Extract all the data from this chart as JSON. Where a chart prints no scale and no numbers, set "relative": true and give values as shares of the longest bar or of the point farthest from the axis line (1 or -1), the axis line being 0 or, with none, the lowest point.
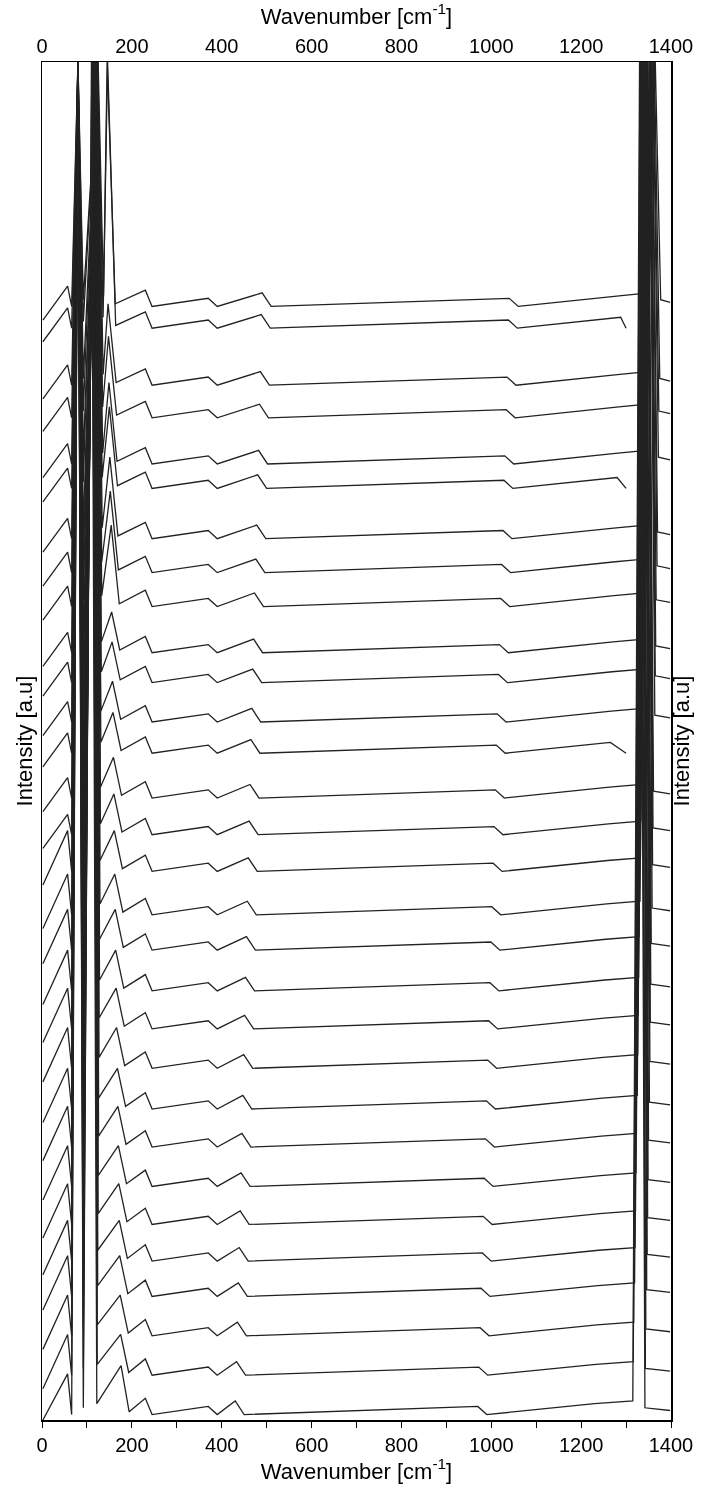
{
  "chart_data": {
    "type": "line",
    "relative": true,
    "xlabel": "Wavenumber [cm$^{-1}$]",
    "x2label": "Wavenumber [cm$^{-1}$]",
    "ylabel": "Intensity [a.u]",
    "y2label": "Intensity [a.u]",
    "xlim": [
      0,
      1400
    ],
    "x2lim": [
      0,
      1400
    ],
    "xticks": [
      0,
      {
        "value": 100,
        "label": null
      },
      200,
      {
        "value": 300,
        "label": null
      },
      400,
      {
        "value": 500,
        "label": null
      },
      600,
      {
        "value": 700,
        "label": null
      },
      800,
      {
        "value": 900,
        "label": null
      },
      1000,
      {
        "value": 1100,
        "label": null
      },
      1200,
      {
        "value": 1300,
        "label": null
      },
      1400
    ],
    "x2ticks": [
      0,
      200,
      400,
      600,
      800,
      1000,
      1200,
      1400
    ],
    "tick_labels": "x",
    "grid": false,
    "line_style": "solid",
    "series": [
      {
        "color": "#222222",
        "x": [
          2,
          57,
          66,
          80,
          92,
          125,
          137,
          145,
          163,
          230,
          245,
          370,
          390,
          490,
          510,
          1040,
          1060,
          1290,
          1350,
          1365,
          1377,
          1398
        ],
        "values": [
          0.81,
          0.835,
          0.82,
          1,
          0.825,
          1,
          0.828,
          1,
          0.822,
          0.832,
          0.82,
          0.826,
          0.82,
          0.83,
          0.82,
          0.826,
          0.82,
          0.828,
          0.83,
          1,
          0.825,
          0.823
        ]
      },
      {
        "color": "#222222",
        "x": [
          2,
          57,
          66,
          80,
          92,
          124,
          136,
          146,
          164,
          230,
          245,
          370,
          390,
          488,
          508,
          1038,
          1058,
          1288,
          1300
        ],
        "values": [
          0.794,
          0.819,
          0.804,
          1,
          0.809,
          1,
          0.812,
          1,
          0.806,
          0.816,
          0.804,
          0.81,
          0.804,
          0.814,
          0.804,
          0.81,
          0.804,
          0.812,
          0.804
        ]
      },
      {
        "color": "#222222",
        "x": [
          2,
          57,
          66,
          80,
          92,
          124,
          136,
          147,
          165,
          230,
          245,
          370,
          390,
          486,
          506,
          1035,
          1055,
          1286,
          1348,
          1363,
          1375,
          1398
        ],
        "values": [
          0.752,
          0.777,
          0.762,
          1,
          0.767,
          1,
          0.77,
          0.822,
          0.764,
          0.774,
          0.762,
          0.768,
          0.762,
          0.772,
          0.762,
          0.768,
          0.762,
          0.77,
          0.772,
          1,
          0.767,
          0.765
        ]
      },
      {
        "color": "#222222",
        "x": [
          2,
          57,
          66,
          80,
          92,
          123,
          135,
          148,
          166,
          230,
          245,
          370,
          390,
          484,
          504,
          1033,
          1053,
          1284,
          1346,
          1361,
          1373,
          1398
        ],
        "values": [
          0.728,
          0.753,
          0.738,
          1,
          0.743,
          1,
          0.746,
          0.798,
          0.74,
          0.75,
          0.738,
          0.744,
          0.738,
          0.748,
          0.738,
          0.744,
          0.738,
          0.746,
          0.748,
          1,
          0.743,
          0.741
        ]
      },
      {
        "color": "#222222",
        "x": [
          2,
          57,
          66,
          80,
          92,
          123,
          135,
          149,
          167,
          230,
          245,
          370,
          390,
          482,
          502,
          1030,
          1050,
          1282,
          1345,
          1360,
          1372,
          1398
        ],
        "values": [
          0.694,
          0.719,
          0.704,
          1,
          0.709,
          1,
          0.712,
          0.764,
          0.706,
          0.716,
          0.704,
          0.71,
          0.704,
          0.714,
          0.704,
          0.71,
          0.704,
          0.712,
          0.714,
          1,
          0.709,
          0.707
        ]
      },
      {
        "color": "#222222",
        "x": [
          2,
          57,
          66,
          80,
          92,
          122,
          134,
          150,
          168,
          230,
          245,
          370,
          390,
          480,
          500,
          1028,
          1048,
          1280,
          1300
        ],
        "values": [
          0.676,
          0.701,
          0.686,
          1,
          0.691,
          1,
          0.694,
          0.746,
          0.688,
          0.698,
          0.686,
          0.692,
          0.686,
          0.696,
          0.686,
          0.692,
          0.686,
          0.694,
          0.686
        ]
      },
      {
        "color": "#222222",
        "x": [
          2,
          57,
          66,
          80,
          92,
          122,
          134,
          151,
          169,
          230,
          245,
          370,
          390,
          478,
          498,
          1026,
          1046,
          1278,
          1343,
          1358,
          1370,
          1398
        ],
        "values": [
          0.639,
          0.664,
          0.649,
          1,
          0.654,
          1,
          0.657,
          0.709,
          0.651,
          0.661,
          0.649,
          0.655,
          0.649,
          0.659,
          0.649,
          0.655,
          0.649,
          0.657,
          0.659,
          1,
          0.654,
          0.652
        ]
      },
      {
        "color": "#222222",
        "x": [
          2,
          57,
          66,
          80,
          92,
          121,
          133,
          152,
          170,
          230,
          245,
          370,
          390,
          476,
          496,
          1023,
          1043,
          1276,
          1342,
          1357,
          1369,
          1398
        ],
        "values": [
          0.614,
          0.639,
          0.624,
          1,
          0.629,
          1,
          0.632,
          0.684,
          0.626,
          0.636,
          0.624,
          0.63,
          0.624,
          0.634,
          0.624,
          0.63,
          0.624,
          0.632,
          0.634,
          1,
          0.629,
          0.627
        ]
      },
      {
        "color": "#222222",
        "x": [
          2,
          57,
          66,
          80,
          92,
          121,
          133,
          154,
          172,
          230,
          245,
          370,
          390,
          473,
          493,
          1021,
          1041,
          1273,
          1340,
          1355,
          1367,
          1398
        ],
        "values": [
          0.589,
          0.614,
          0.599,
          1,
          0.604,
          1,
          0.607,
          0.659,
          0.601,
          0.611,
          0.599,
          0.605,
          0.599,
          0.609,
          0.599,
          0.605,
          0.599,
          0.607,
          0.609,
          1,
          0.604,
          0.602
        ]
      },
      {
        "color": "#222222",
        "x": [
          2,
          57,
          66,
          80,
          92,
          120,
          132,
          155,
          173,
          230,
          245,
          370,
          390,
          471,
          491,
          1018,
          1038,
          1271,
          1339,
          1354,
          1366,
          1398
        ],
        "values": [
          0.555,
          0.58,
          0.565,
          1,
          0.57,
          1,
          0.573,
          0.595,
          0.567,
          0.577,
          0.565,
          0.571,
          0.565,
          0.575,
          0.565,
          0.571,
          0.565,
          0.573,
          0.575,
          1,
          0.57,
          0.568
        ]
      },
      {
        "color": "#222222",
        "x": [
          2,
          57,
          66,
          80,
          92,
          120,
          132,
          156,
          174,
          230,
          245,
          370,
          390,
          469,
          489,
          1016,
          1036,
          1269,
          1338,
          1353,
          1365,
          1398
        ],
        "values": [
          0.533,
          0.558,
          0.543,
          1,
          0.548,
          1,
          0.551,
          0.573,
          0.545,
          0.555,
          0.543,
          0.549,
          0.543,
          0.553,
          0.543,
          0.549,
          0.543,
          0.551,
          0.553,
          1,
          0.548,
          0.546
        ]
      },
      {
        "color": "#222222",
        "x": [
          2,
          57,
          66,
          80,
          92,
          119,
          131,
          157,
          175,
          230,
          245,
          370,
          390,
          467,
          487,
          1013,
          1033,
          1267,
          1337,
          1352,
          1364,
          1398
        ],
        "values": [
          0.504,
          0.529,
          0.514,
          1,
          0.519,
          1,
          0.522,
          0.544,
          0.516,
          0.526,
          0.514,
          0.52,
          0.514,
          0.524,
          0.514,
          0.52,
          0.514,
          0.522,
          0.524,
          1,
          0.519,
          0.517
        ]
      },
      {
        "color": "#222222",
        "x": [
          2,
          57,
          66,
          80,
          92,
          119,
          131,
          158,
          176,
          230,
          245,
          370,
          390,
          465,
          485,
          1011,
          1031,
          1265,
          1300
        ],
        "values": [
          0.481,
          0.506,
          0.491,
          1,
          0.496,
          1,
          0.499,
          0.521,
          0.493,
          0.503,
          0.491,
          0.497,
          0.491,
          0.501,
          0.491,
          0.497,
          0.491,
          0.499,
          0.491
        ]
      },
      {
        "color": "#222222",
        "x": [
          2,
          57,
          66,
          80,
          92,
          118,
          130,
          159,
          177,
          230,
          245,
          370,
          390,
          463,
          483,
          1009,
          1029,
          1263,
          1334,
          1349,
          1361,
          1398
        ],
        "values": [
          0.448,
          0.473,
          0.458,
          1,
          0.463,
          1,
          0.466,
          0.488,
          0.46,
          0.47,
          0.458,
          0.464,
          0.458,
          0.468,
          0.458,
          0.464,
          0.458,
          0.466,
          0.468,
          1,
          0.463,
          0.461
        ]
      },
      {
        "color": "#222222",
        "x": [
          2,
          57,
          66,
          80,
          92,
          118,
          130,
          160,
          178,
          230,
          245,
          370,
          390,
          461,
          481,
          1006,
          1026,
          1261,
          1333,
          1348,
          1360,
          1398
        ],
        "values": [
          0.421,
          0.446,
          0.431,
          1,
          0.436,
          1,
          0.439,
          0.461,
          0.433,
          0.443,
          0.431,
          0.437,
          0.431,
          0.441,
          0.431,
          0.437,
          0.431,
          0.439,
          0.441,
          1,
          0.436,
          0.434
        ]
      },
      {
        "color": "#222222",
        "x": [
          2,
          57,
          66,
          80,
          92,
          117,
          129,
          161,
          179,
          230,
          245,
          370,
          390,
          459,
          479,
          1004,
          1024,
          1259,
          1332,
          1347,
          1359,
          1398
        ],
        "values": [
          0.394,
          0.434,
          0.404,
          1,
          0.409,
          1,
          0.412,
          0.434,
          0.406,
          0.416,
          0.404,
          0.41,
          0.404,
          0.414,
          0.404,
          0.41,
          0.404,
          0.412,
          0.414,
          1,
          0.409,
          0.407
        ]
      },
      {
        "color": "#222222",
        "x": [
          2,
          57,
          66,
          80,
          92,
          117,
          129,
          162,
          180,
          230,
          245,
          370,
          390,
          457,
          477,
          1001,
          1021,
          1257,
          1331,
          1346,
          1358,
          1398
        ],
        "values": [
          0.362,
          0.402,
          0.372,
          1,
          0.377,
          1,
          0.38,
          0.402,
          0.374,
          0.384,
          0.372,
          0.378,
          0.372,
          0.382,
          0.372,
          0.378,
          0.372,
          0.38,
          0.382,
          1,
          0.377,
          0.375
        ]
      },
      {
        "color": "#222222",
        "x": [
          2,
          57,
          66,
          80,
          92,
          116,
          128,
          163,
          181,
          230,
          245,
          370,
          390,
          455,
          475,
          999,
          1019,
          1255,
          1329,
          1344,
          1356,
          1398
        ],
        "values": [
          0.336,
          0.376,
          0.346,
          1,
          0.351,
          1,
          0.354,
          0.376,
          0.348,
          0.358,
          0.346,
          0.352,
          0.346,
          0.356,
          0.346,
          0.352,
          0.346,
          0.354,
          0.356,
          1,
          0.351,
          0.349
        ]
      },
      {
        "color": "#222222",
        "x": [
          2,
          57,
          66,
          80,
          92,
          116,
          128,
          164,
          182,
          230,
          245,
          370,
          390,
          453,
          473,
          997,
          1017,
          1253,
          1328,
          1343,
          1355,
          1398
        ],
        "values": [
          0.306,
          0.346,
          0.316,
          1,
          0.321,
          1,
          0.324,
          0.346,
          0.318,
          0.328,
          0.316,
          0.322,
          0.316,
          0.326,
          0.316,
          0.322,
          0.316,
          0.324,
          0.326,
          1,
          0.321,
          0.319
        ]
      },
      {
        "color": "#222222",
        "x": [
          2,
          57,
          66,
          80,
          92,
          115,
          127,
          165,
          183,
          230,
          245,
          370,
          390,
          451,
          471,
          994,
          1014,
          1251,
          1327,
          1342,
          1354,
          1398
        ],
        "values": [
          0.278,
          0.318,
          0.288,
          1,
          0.293,
          1,
          0.296,
          0.318,
          0.29,
          0.3,
          0.288,
          0.294,
          0.288,
          0.298,
          0.288,
          0.294,
          0.288,
          0.296,
          0.298,
          1,
          0.293,
          0.291
        ]
      },
      {
        "color": "#222222",
        "x": [
          2,
          57,
          66,
          80,
          92,
          115,
          127,
          166,
          184,
          230,
          245,
          370,
          390,
          449,
          469,
          992,
          1012,
          1249,
          1326,
          1341,
          1353,
          1398
        ],
        "values": [
          0.249,
          0.289,
          0.259,
          1,
          0.264,
          1,
          0.267,
          0.289,
          0.261,
          0.271,
          0.259,
          0.265,
          0.259,
          0.269,
          0.259,
          0.265,
          0.259,
          0.267,
          0.269,
          1,
          0.264,
          0.262
        ]
      },
      {
        "color": "#222222",
        "x": [
          2,
          57,
          66,
          80,
          92,
          114,
          126,
          168,
          186,
          230,
          245,
          370,
          390,
          447,
          467,
          989,
          1009,
          1247,
          1325,
          1340,
          1352,
          1398
        ],
        "values": [
          0.219,
          0.259,
          0.229,
          1,
          0.234,
          1,
          0.237,
          0.259,
          0.231,
          0.241,
          0.229,
          0.235,
          0.229,
          0.239,
          0.229,
          0.235,
          0.229,
          0.237,
          0.239,
          1,
          0.234,
          0.232
        ]
      },
      {
        "color": "#222222",
        "x": [
          2,
          57,
          66,
          80,
          92,
          114,
          126,
          169,
          187,
          230,
          245,
          370,
          390,
          445,
          465,
          987,
          1007,
          1245,
          1323,
          1338,
          1350,
          1398
        ],
        "values": [
          0.191,
          0.231,
          0.201,
          1,
          0.206,
          1,
          0.209,
          0.231,
          0.203,
          0.213,
          0.201,
          0.207,
          0.201,
          0.211,
          0.201,
          0.207,
          0.201,
          0.209,
          0.211,
          1,
          0.206,
          0.204
        ]
      },
      {
        "color": "#222222",
        "x": [
          2,
          57,
          66,
          80,
          92,
          113,
          125,
          170,
          188,
          230,
          245,
          370,
          390,
          443,
          463,
          984,
          1004,
          1243,
          1322,
          1337,
          1349,
          1398
        ],
        "values": [
          0.162,
          0.202,
          0.172,
          1,
          0.177,
          1,
          0.18,
          0.202,
          0.174,
          0.184,
          0.172,
          0.178,
          0.172,
          0.182,
          0.172,
          0.178,
          0.172,
          0.18,
          0.182,
          1,
          0.177,
          0.175
        ]
      },
      {
        "color": "#222222",
        "x": [
          2,
          57,
          66,
          80,
          92,
          113,
          125,
          171,
          189,
          230,
          245,
          370,
          390,
          441,
          461,
          982,
          1002,
          1241,
          1321,
          1336,
          1348,
          1398
        ],
        "values": [
          0.134,
          0.174,
          0.144,
          1,
          0.149,
          1,
          0.152,
          0.174,
          0.146,
          0.156,
          0.144,
          0.15,
          0.144,
          0.154,
          0.144,
          0.15,
          0.144,
          0.152,
          0.154,
          1,
          0.149,
          0.147
        ]
      },
      {
        "color": "#222222",
        "x": [
          2,
          57,
          66,
          80,
          92,
          112,
          124,
          172,
          190,
          230,
          245,
          370,
          390,
          439,
          459,
          980,
          1000,
          1239,
          1320,
          1335,
          1347,
          1398
        ],
        "values": [
          0.107,
          0.147,
          0.117,
          1,
          0.122,
          1,
          0.125,
          0.147,
          0.119,
          0.129,
          0.117,
          0.123,
          0.117,
          0.127,
          0.117,
          0.123,
          0.117,
          0.125,
          0.127,
          1,
          0.122,
          0.12
        ]
      },
      {
        "color": "#222222",
        "x": [
          2,
          57,
          66,
          80,
          92,
          112,
          124,
          173,
          191,
          230,
          245,
          370,
          390,
          437,
          457,
          977,
          997,
          1237,
          1319,
          1334,
          1346,
          1398
        ],
        "values": [
          0.081,
          0.121,
          0.091,
          1,
          0.096,
          1,
          0.099,
          0.121,
          0.093,
          0.103,
          0.091,
          0.097,
          0.091,
          0.101,
          0.091,
          0.097,
          0.091,
          0.099,
          0.101,
          1,
          0.096,
          0.094
        ]
      },
      {
        "color": "#222222",
        "x": [
          2,
          57,
          66,
          80,
          92,
          111,
          123,
          174,
          192,
          230,
          245,
          370,
          390,
          435,
          455,
          975,
          995,
          1235,
          1317,
          1332,
          1344,
          1398
        ],
        "values": [
          0.052,
          0.092,
          0.062,
          1,
          0.067,
          1,
          0.07,
          0.092,
          0.064,
          0.074,
          0.062,
          0.068,
          0.062,
          0.072,
          0.062,
          0.068,
          0.062,
          0.07,
          0.072,
          1,
          0.067,
          0.065
        ]
      },
      {
        "color": "#222222",
        "x": [
          2,
          57,
          66,
          80,
          92,
          111,
          123,
          175,
          193,
          230,
          245,
          370,
          390,
          433,
          453,
          972,
          992,
          1233,
          1316,
          1331,
          1343,
          1398
        ],
        "values": [
          0.023,
          0.063,
          0.033,
          1,
          0.038,
          1,
          0.041,
          0.063,
          0.035,
          0.045,
          0.033,
          0.039,
          0.033,
          0.043,
          0.033,
          0.039,
          0.033,
          0.041,
          0.043,
          1,
          0.038,
          0.036
        ]
      },
      {
        "color": "#222222",
        "x": [
          2,
          57,
          66,
          80,
          92,
          110,
          122,
          176,
          194,
          230,
          245,
          370,
          390,
          430,
          450,
          970,
          990,
          1230,
          1315,
          1330,
          1342,
          1398
        ],
        "values": [
          0,
          0.034,
          0.004,
          1,
          0.009,
          1,
          0.012,
          0.04,
          0.006,
          0.016,
          0.004,
          0.01,
          0.004,
          0.014,
          0.004,
          0.01,
          0.004,
          0.012,
          0.014,
          1,
          0.009,
          0.007
        ]
      }
    ]
  }
}
